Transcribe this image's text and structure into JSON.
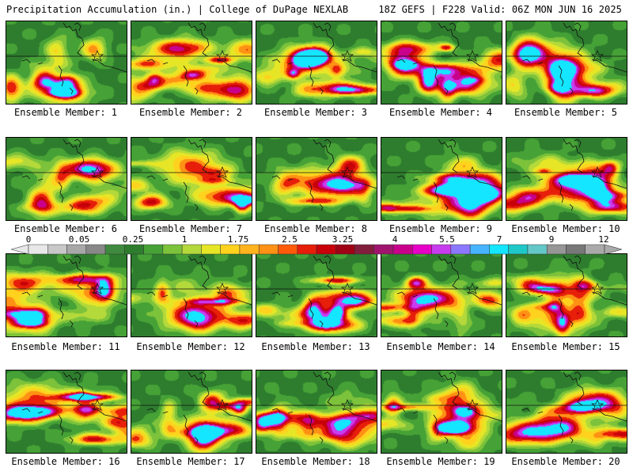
{
  "header": {
    "title": "Precipitation Accumulation (in.) | College of DuPage NEXLAB",
    "run_info": "18Z GEFS | F228 Valid: 06Z MON JUN 16 2025"
  },
  "colorbar": {
    "tick_labels": [
      "0",
      "0.05",
      "0.25",
      "1",
      "1.75",
      "2.5",
      "3.25",
      "4",
      "5.5",
      "7",
      "9",
      "12"
    ],
    "colors": [
      "#e8e8e8",
      "#c8c8c8",
      "#a8a8a8",
      "#888888",
      "#3f8a3f",
      "#2e7d2e",
      "#46a236",
      "#7cc23a",
      "#b4d93a",
      "#e6e626",
      "#ffd21e",
      "#ffb41e",
      "#ff9114",
      "#ff5a0a",
      "#e61e0a",
      "#c8000a",
      "#a00014",
      "#821e3c",
      "#a0146e",
      "#c8008c",
      "#e600c8",
      "#c83cf0",
      "#8c78ff",
      "#46b4ff",
      "#14e6ff",
      "#1ec8c8",
      "#64c8c8",
      "#969696",
      "#787878",
      "#aaaaaa"
    ]
  },
  "members": [
    {
      "label": "Ensemble Member: 1"
    },
    {
      "label": "Ensemble Member: 2"
    },
    {
      "label": "Ensemble Member: 3"
    },
    {
      "label": "Ensemble Member: 4"
    },
    {
      "label": "Ensemble Member: 5"
    },
    {
      "label": "Ensemble Member: 6"
    },
    {
      "label": "Ensemble Member: 7"
    },
    {
      "label": "Ensemble Member: 8"
    },
    {
      "label": "Ensemble Member: 9"
    },
    {
      "label": "Ensemble Member: 10"
    },
    {
      "label": "Ensemble Member: 11"
    },
    {
      "label": "Ensemble Member: 12"
    },
    {
      "label": "Ensemble Member: 13"
    },
    {
      "label": "Ensemble Member: 14"
    },
    {
      "label": "Ensemble Member: 15"
    },
    {
      "label": "Ensemble Member: 16"
    },
    {
      "label": "Ensemble Member: 17"
    },
    {
      "label": "Ensemble Member: 18"
    },
    {
      "label": "Ensemble Member: 19"
    },
    {
      "label": "Ensemble Member: 20"
    }
  ]
}
